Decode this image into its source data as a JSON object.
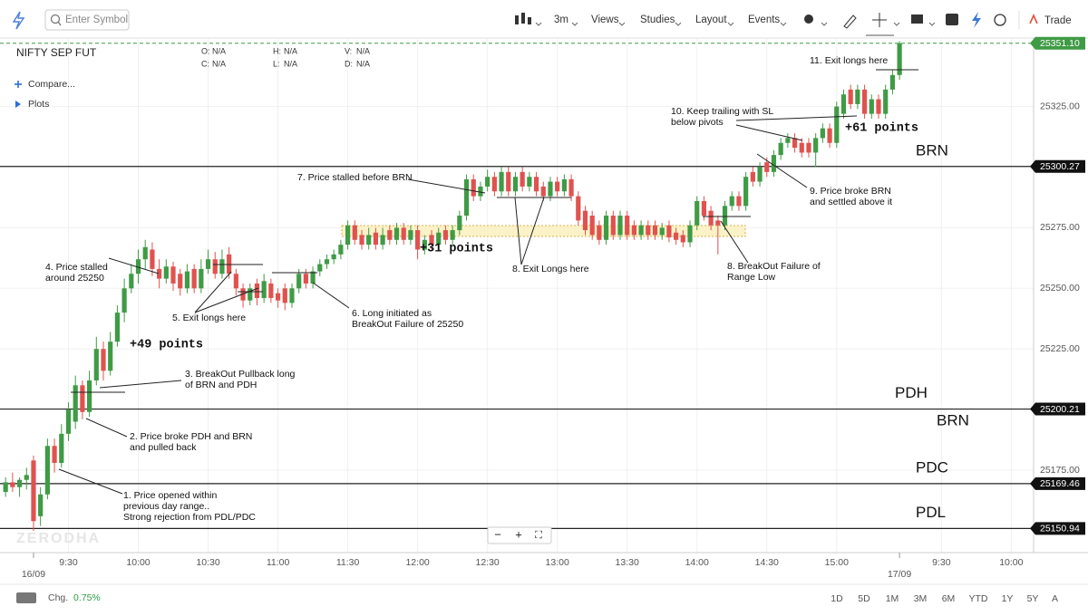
{
  "toolbar": {
    "search_placeholder": "Enter Symbol",
    "interval": "3m",
    "menus": [
      "Views",
      "Studies",
      "Layout",
      "Events"
    ],
    "trade": "Trade"
  },
  "chart_data": {
    "type": "candlestick",
    "title": "NIFTY SEP FUT",
    "ohlc_legend": [
      {
        "label": "O:",
        "value": "N/A"
      },
      {
        "label": "H:",
        "value": "N/A"
      },
      {
        "label": "V:",
        "value": "N/A"
      },
      {
        "label": "C:",
        "value": "N/A"
      },
      {
        "label": "L:",
        "value": "N/A"
      },
      {
        "label": "D:",
        "value": "N/A"
      }
    ],
    "compare": "Compare...",
    "plots": "Plots",
    "watermark": "ZERODHA",
    "zoom_controls": [
      "−",
      "+",
      "⛶"
    ],
    "up_color": "#3f9b45",
    "down_color": "#e0524f",
    "grid": true,
    "xlim": [
      -4.8,
      143.2
    ],
    "xticks": [
      {
        "value": 5,
        "label": "9:30"
      },
      {
        "value": 15,
        "label": "10:00"
      },
      {
        "value": 25,
        "label": "10:30"
      },
      {
        "value": 35,
        "label": "11:00"
      },
      {
        "value": 45,
        "label": "11:30"
      },
      {
        "value": 55,
        "label": "12:00"
      },
      {
        "value": 65,
        "label": "12:30"
      },
      {
        "value": 75,
        "label": "13:00"
      },
      {
        "value": 85,
        "label": "13:30"
      },
      {
        "value": 95,
        "label": "14:00"
      },
      {
        "value": 105,
        "label": "14:30"
      },
      {
        "value": 115,
        "label": "15:00"
      },
      {
        "value": 130,
        "label": "9:30"
      },
      {
        "value": 140,
        "label": "10:00"
      }
    ],
    "date_ticks": [
      {
        "value": 0,
        "label": "16/09"
      },
      {
        "value": 124,
        "label": "17/09"
      }
    ],
    "ylim": [
      25141,
      25354
    ],
    "yticks": [
      {
        "value": 25325,
        "label": "25325.00"
      },
      {
        "value": 25275,
        "label": "25275.00"
      },
      {
        "value": 25250,
        "label": "25250.00"
      },
      {
        "value": 25225,
        "label": "25225.00"
      },
      {
        "value": 25175,
        "label": "25175.00"
      }
    ],
    "price_levels": [
      {
        "name": "BRN",
        "value": 25300.27
      },
      {
        "name": "PDH",
        "value": 25200.21
      },
      {
        "name": "PDC",
        "value": 25169.46
      },
      {
        "name": "PDL",
        "value": 25150.94
      }
    ],
    "last_price": {
      "value": 25351.1,
      "label": "25351.10"
    },
    "x": [
      -4,
      -3,
      -2,
      -1,
      0,
      1,
      2,
      3,
      4,
      5,
      6,
      7,
      8,
      9,
      10,
      11,
      12,
      13,
      14,
      15,
      16,
      17,
      18,
      19,
      20,
      21,
      22,
      23,
      24,
      25,
      26,
      27,
      28,
      29,
      30,
      31,
      32,
      33,
      34,
      35,
      36,
      37,
      38,
      39,
      40,
      41,
      42,
      43,
      44,
      45,
      46,
      47,
      48,
      49,
      50,
      51,
      52,
      53,
      54,
      55,
      56,
      57,
      58,
      59,
      60,
      61,
      62,
      63,
      64,
      65,
      66,
      67,
      68,
      69,
      70,
      71,
      72,
      73,
      74,
      75,
      76,
      77,
      78,
      79,
      80,
      81,
      82,
      83,
      84,
      85,
      86,
      87,
      88,
      89,
      90,
      91,
      92,
      93,
      94,
      95,
      96,
      97,
      98,
      99,
      100,
      101,
      102,
      103,
      104,
      105,
      106,
      107,
      108,
      109,
      110,
      111,
      112,
      113,
      114,
      115,
      116,
      117,
      118,
      119,
      120,
      121,
      122,
      123,
      124
    ],
    "candles": [
      [
        25166,
        25172,
        25164,
        25170
      ],
      [
        25170,
        25174,
        25166,
        25168
      ],
      [
        25168,
        25172,
        25164,
        25171
      ],
      [
        25171,
        25176,
        25167,
        25173
      ],
      [
        25179,
        25181,
        25150,
        25154
      ],
      [
        25156,
        25168,
        25152,
        25165
      ],
      [
        25165,
        25188,
        25163,
        25185
      ],
      [
        25185,
        25188,
        25174,
        25178
      ],
      [
        25178,
        25194,
        25176,
        25190
      ],
      [
        25190,
        25203,
        25187,
        25200
      ],
      [
        25195,
        25214,
        25192,
        25210
      ],
      [
        25210,
        25212,
        25196,
        25199
      ],
      [
        25199,
        25216,
        25197,
        25212
      ],
      [
        25212,
        25230,
        25210,
        25225
      ],
      [
        25225,
        25228,
        25212,
        25216
      ],
      [
        25216,
        25232,
        25214,
        25228
      ],
      [
        25228,
        25243,
        25226,
        25240
      ],
      [
        25240,
        25254,
        25236,
        25250
      ],
      [
        25250,
        25260,
        25248,
        25256
      ],
      [
        25256,
        25266,
        25252,
        25262
      ],
      [
        25262,
        25270,
        25258,
        25267
      ],
      [
        25266,
        25269,
        25255,
        25258
      ],
      [
        25258,
        25262,
        25250,
        25254
      ],
      [
        25254,
        25262,
        25252,
        25259
      ],
      [
        25259,
        25261,
        25249,
        25252
      ],
      [
        25256,
        25258,
        25247,
        25250
      ],
      [
        25250,
        25260,
        25248,
        25257
      ],
      [
        25258,
        25260,
        25248,
        25250
      ],
      [
        25250,
        25262,
        25248,
        25258
      ],
      [
        25258,
        25266,
        25256,
        25262
      ],
      [
        25262,
        25265,
        25254,
        25256
      ],
      [
        25256,
        25266,
        25254,
        25262
      ],
      [
        25264,
        25267,
        25254,
        25256
      ],
      [
        25256,
        25258,
        25247,
        25250
      ],
      [
        25250,
        25252,
        25242,
        25245
      ],
      [
        25245,
        25252,
        25243,
        25250
      ],
      [
        25252,
        25254,
        25243,
        25246
      ],
      [
        25246,
        25256,
        25244,
        25253
      ],
      [
        25252,
        25254,
        25244,
        25246
      ],
      [
        25248,
        25250,
        25242,
        25245
      ],
      [
        25250,
        25252,
        25241,
        25244
      ],
      [
        25244,
        25252,
        25242,
        25250
      ],
      [
        25250,
        25258,
        25248,
        25256
      ],
      [
        25256,
        25258,
        25250,
        25252
      ],
      [
        25252,
        25259,
        25250,
        25257
      ],
      [
        25257,
        25262,
        25255,
        25260
      ],
      [
        25260,
        25264,
        25258,
        25262
      ],
      [
        25262,
        25266,
        25260,
        25264
      ],
      [
        25264,
        25270,
        25262,
        25268
      ],
      [
        25268,
        25278,
        25266,
        25276
      ],
      [
        25276,
        25278,
        25268,
        25270
      ],
      [
        25272,
        25274,
        25266,
        25268
      ],
      [
        25268,
        25275,
        25266,
        25272
      ],
      [
        25273,
        25275,
        25266,
        25268
      ],
      [
        25268,
        25275,
        25266,
        25272
      ],
      [
        25274,
        25276,
        25268,
        25270
      ],
      [
        25270,
        25277,
        25268,
        25275
      ],
      [
        25275,
        25277,
        25268,
        25270
      ],
      [
        25270,
        25276,
        25268,
        25274
      ],
      [
        25274,
        25276,
        25262,
        25266
      ],
      [
        25266,
        25272,
        25264,
        25270
      ],
      [
        25272,
        25274,
        25266,
        25268
      ],
      [
        25268,
        25275,
        25266,
        25273
      ],
      [
        25274,
        25276,
        25268,
        25270
      ],
      [
        25270,
        25276,
        25268,
        25274
      ],
      [
        25274,
        25282,
        25272,
        25280
      ],
      [
        25280,
        25297,
        25278,
        25295
      ],
      [
        25295,
        25297,
        25286,
        25288
      ],
      [
        25288,
        25294,
        25286,
        25292
      ],
      [
        25292,
        25299,
        25290,
        25296
      ],
      [
        25296,
        25298,
        25288,
        25290
      ],
      [
        25290,
        25300,
        25288,
        25298
      ],
      [
        25298,
        25300,
        25288,
        25290
      ],
      [
        25290,
        25298,
        25288,
        25296
      ],
      [
        25298,
        25300,
        25290,
        25292
      ],
      [
        25292,
        25298,
        25290,
        25296
      ],
      [
        25296,
        25298,
        25288,
        25290
      ],
      [
        25292,
        25294,
        25286,
        25288
      ],
      [
        25288,
        25296,
        25286,
        25294
      ],
      [
        25294,
        25296,
        25288,
        25290
      ],
      [
        25290,
        25297,
        25288,
        25295
      ],
      [
        25295,
        25297,
        25286,
        25288
      ],
      [
        25288,
        25290,
        25276,
        25278
      ],
      [
        25282,
        25284,
        25272,
        25274
      ],
      [
        25280,
        25282,
        25270,
        25272
      ],
      [
        25276,
        25278,
        25268,
        25270
      ],
      [
        25270,
        25282,
        25268,
        25280
      ],
      [
        25280,
        25282,
        25270,
        25272
      ],
      [
        25272,
        25282,
        25270,
        25280
      ],
      [
        25280,
        25282,
        25270,
        25272
      ],
      [
        25276,
        25278,
        25270,
        25272
      ],
      [
        25272,
        25278,
        25270,
        25276
      ],
      [
        25276,
        25278,
        25270,
        25272
      ],
      [
        25276,
        25278,
        25270,
        25272
      ],
      [
        25272,
        25277,
        25270,
        25275
      ],
      [
        25276,
        25278,
        25269,
        25271
      ],
      [
        25273,
        25275,
        25268,
        25270
      ],
      [
        25272,
        25274,
        25267,
        25269
      ],
      [
        25269,
        25278,
        25267,
        25276
      ],
      [
        25276,
        25288,
        25274,
        25286
      ],
      [
        25286,
        25288,
        25278,
        25280
      ],
      [
        25282,
        25284,
        25274,
        25276
      ],
      [
        25278,
        25280,
        25264,
        25276
      ],
      [
        25276,
        25286,
        25274,
        25284
      ],
      [
        25284,
        25290,
        25282,
        25288
      ],
      [
        25288,
        25290,
        25282,
        25284
      ],
      [
        25284,
        25298,
        25282,
        25296
      ],
      [
        25298,
        25300,
        25292,
        25294
      ],
      [
        25294,
        25302,
        25292,
        25300
      ],
      [
        25302,
        25304,
        25296,
        25298
      ],
      [
        25298,
        25307,
        25296,
        25305
      ],
      [
        25305,
        25312,
        25303,
        25310
      ],
      [
        25310,
        25314,
        25308,
        25312
      ],
      [
        25312,
        25314,
        25306,
        25308
      ],
      [
        25310,
        25312,
        25304,
        25306
      ],
      [
        25310,
        25312,
        25304,
        25306
      ],
      [
        25306,
        25314,
        25300,
        25312
      ],
      [
        25312,
        25318,
        25310,
        25316
      ],
      [
        25316,
        25318,
        25308,
        25310
      ],
      [
        25310,
        25327,
        25308,
        25325
      ],
      [
        25322,
        25332,
        25320,
        25330
      ],
      [
        25332,
        25334,
        25324,
        25326
      ],
      [
        25326,
        25334,
        25324,
        25332
      ],
      [
        25332,
        25334,
        25320,
        25322
      ],
      [
        25322,
        25330,
        25320,
        25328
      ],
      [
        25328,
        25330,
        25320,
        25322
      ],
      [
        25322,
        25334,
        25320,
        25332
      ],
      [
        25332,
        25340,
        25330,
        25338
      ],
      [
        25338,
        25352,
        25336,
        25351.1
      ]
    ],
    "annotations": [
      [
        "1. Price opened within",
        "previous day range..",
        "Strong rejection from PDL/PDC"
      ],
      [
        "2. Price broke PDH and BRN",
        "and pulled back"
      ],
      [
        "3. BreakOut Pullback long",
        "of BRN and PDH"
      ],
      [
        "4. Price stalled",
        "around 25250"
      ],
      [
        "5. Exit longs here"
      ],
      [
        "6. Long initiated as",
        "BreakOut Failure of 25250"
      ],
      [
        "7. Price stalled before BRN"
      ],
      [
        "8. Exit Longs here"
      ],
      [
        "8. BreakOut Failure of",
        "Range Low"
      ],
      [
        "9. Price broke BRN",
        "and settled above it"
      ],
      [
        "10. Keep trailing with SL",
        "below pivots"
      ],
      [
        "11. Exit longs here"
      ],
      [
        "BRN"
      ]
    ],
    "points_labels": [
      "+49 points",
      "+31 points",
      "+61 points"
    ]
  },
  "footer": {
    "change_label": "Chg.",
    "change_value": "0.75%",
    "ranges": [
      "1D",
      "5D",
      "1M",
      "3M",
      "6M",
      "YTD",
      "1Y",
      "5Y",
      "A"
    ]
  }
}
